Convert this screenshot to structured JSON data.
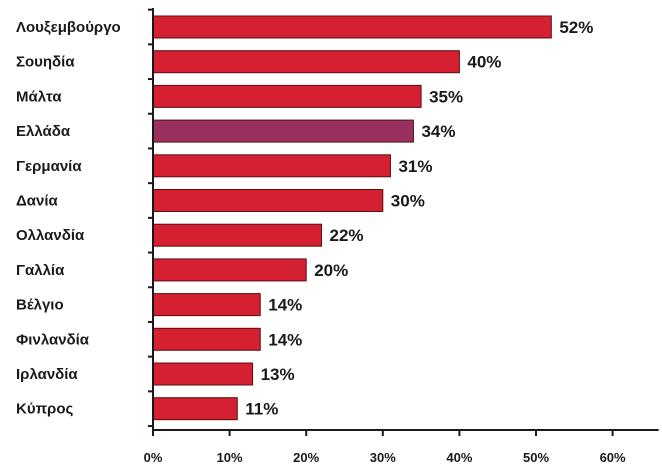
{
  "chart_data": {
    "type": "bar",
    "orientation": "horizontal",
    "categories": [
      "Λουξεμβούργο",
      "Σουηδία",
      "Μάλτα",
      "Ελλάδα",
      "Γερμανία",
      "Δανία",
      "Ολλανδία",
      "Γαλλία",
      "Βέλγιο",
      "Φινλανδία",
      "Ιρλανδία",
      "Κύπρος"
    ],
    "values": [
      52,
      40,
      35,
      34,
      31,
      30,
      22,
      20,
      14,
      14,
      13,
      11
    ],
    "value_labels": [
      "52%",
      "40%",
      "35%",
      "34%",
      "31%",
      "30%",
      "22%",
      "20%",
      "14%",
      "14%",
      "13%",
      "11%"
    ],
    "highlight_index": 3,
    "xlim": [
      0,
      60
    ],
    "x_ticks": [
      0,
      10,
      20,
      30,
      40,
      50,
      60
    ],
    "x_tick_labels": [
      "0%",
      "10%",
      "20%",
      "30%",
      "40%",
      "50%",
      "60%"
    ],
    "grid": false,
    "colors": {
      "bar": "#d42030",
      "highlight": "#9a3060",
      "bar_stroke": "#5a1010",
      "axis": "#1a1a1a"
    }
  }
}
